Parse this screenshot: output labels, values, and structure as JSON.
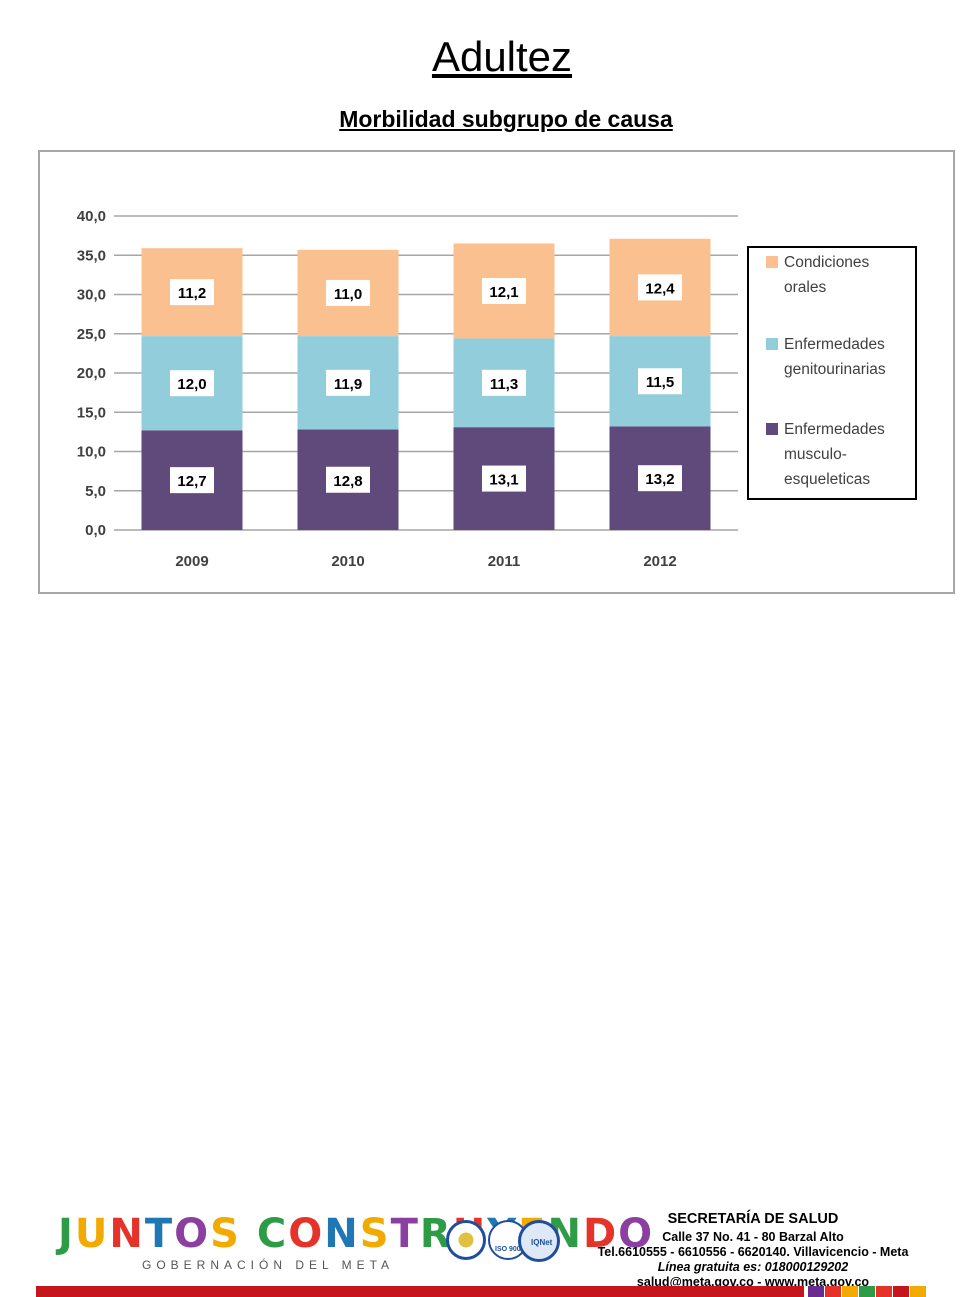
{
  "slide": {
    "title": "Adultez",
    "subtitle": "Morbilidad subgrupo de causa"
  },
  "chart_data": {
    "type": "bar",
    "stacked": true,
    "categories": [
      "2009",
      "2010",
      "2011",
      "2012"
    ],
    "series": [
      {
        "name": "Enfermedades musculo-esqueleticas",
        "values": [
          12.7,
          12.8,
          13.1,
          13.2
        ],
        "labels": [
          "12,7",
          "12,8",
          "13,1",
          "13,2"
        ],
        "color": "#604a7b"
      },
      {
        "name": "Enfermedades genitourinarias",
        "values": [
          12.0,
          11.9,
          11.3,
          11.5
        ],
        "labels": [
          "12,0",
          "11,9",
          "11,3",
          "11,5"
        ],
        "color": "#92cddc"
      },
      {
        "name": "Condiciones orales",
        "values": [
          11.2,
          11.0,
          12.1,
          12.4
        ],
        "labels": [
          "11,2",
          "11,0",
          "12,1",
          "12,4"
        ],
        "color": "#fac090"
      }
    ],
    "ylim": [
      0,
      40
    ],
    "yticks": [
      0,
      5,
      10,
      15,
      20,
      25,
      30,
      35,
      40
    ],
    "ytick_labels": [
      "0,0",
      "5,0",
      "10,0",
      "15,0",
      "20,0",
      "25,0",
      "30,0",
      "35,0",
      "40,0"
    ],
    "legend": {
      "placement": "right",
      "entries": [
        {
          "lines": [
            "Condiciones",
            "orales"
          ],
          "color": "#fac090"
        },
        {
          "lines": [
            "Enfermedades",
            "genitourinarias"
          ],
          "color": "#92cddc"
        },
        {
          "lines": [
            "Enfermedades",
            "musculo-",
            "esqueleticas"
          ],
          "color": "#604a7b"
        }
      ]
    },
    "grid": true
  },
  "footer": {
    "logo_text": "JUNTOS CONSTRUYENDO",
    "logo_sub": "GOBERNACIÓN DEL META",
    "seal_labels": [
      "ISO 9001",
      "IQNet"
    ],
    "org": "SECRETARÍA DE SALUD",
    "address": "Calle 37 No. 41 - 80 Barzal Alto",
    "phones": "Tel.6610555 - 6610556 - 6620140. Villavicencio - Meta",
    "hotline": "Línea gratuita es: 018000129202",
    "contact": "salud@meta.gov.co - www.meta.gov.co",
    "logo_colors": [
      "#2e9c46",
      "#f2a900",
      "#e6332a",
      "#1f77b4",
      "#8b3fa0",
      "#f2a900",
      "#2e9c46",
      "#e6332a",
      "#1f77b4",
      "#f2a900",
      "#8b3fa0",
      "#2e9c46",
      "#e6332a",
      "#1f77b4",
      "#f2a900",
      "#2e9c46",
      "#e6332a",
      "#8b3fa0"
    ],
    "strip_colors": [
      "#6a2c8f",
      "#e6332a",
      "#f2a900",
      "#2e9c46",
      "#e6332a",
      "#c5161d",
      "#f2a900"
    ]
  }
}
